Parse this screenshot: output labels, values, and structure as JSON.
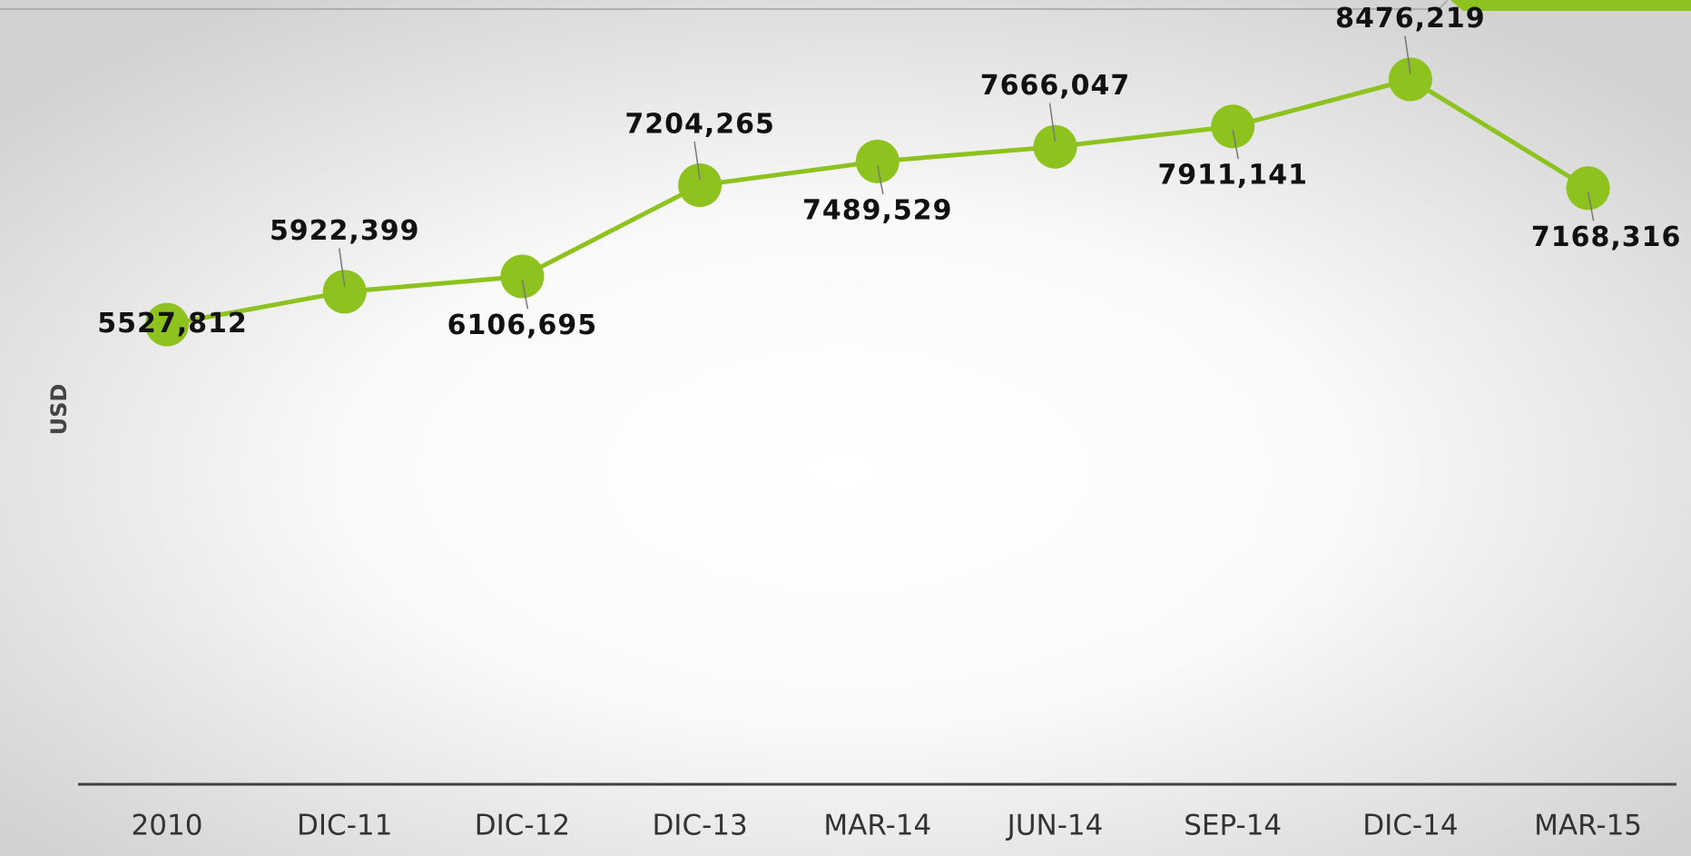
{
  "chart_data": {
    "type": "line",
    "y_label": "USD",
    "categories": [
      "2010",
      "DIC-11",
      "DIC-12",
      "DIC-13",
      "MAR-14",
      "JUN-14",
      "SEP-14",
      "DIC-14",
      "MAR-15"
    ],
    "series": [
      {
        "color": "#8dc21f",
        "values": [
          5527.812,
          5922.399,
          6106.695,
          7204.265,
          7489.529,
          7666.047,
          7911.141,
          8476.219,
          7168.316
        ],
        "value_labels": [
          "5527,812",
          "5922,399",
          "6106,695",
          "7204,265",
          "7489,529",
          "7666,047",
          "7911,141",
          "8476,219",
          "7168,316"
        ]
      }
    ],
    "ylim": [
      0,
      9300
    ]
  }
}
